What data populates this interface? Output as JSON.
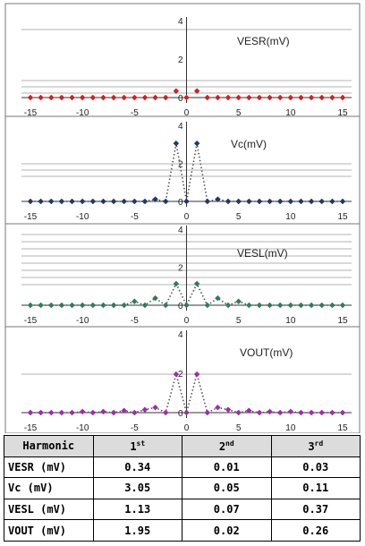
{
  "chart_data": [
    {
      "type": "scatter",
      "title": "VESR(mV)",
      "x": [
        -15,
        -14,
        -13,
        -12,
        -11,
        -10,
        -9,
        -8,
        -7,
        -6,
        -5,
        -4,
        -3,
        -2,
        -1,
        0,
        1,
        2,
        3,
        4,
        5,
        6,
        7,
        8,
        9,
        10,
        11,
        12,
        13,
        14,
        15
      ],
      "y": [
        0,
        0,
        0,
        0,
        0,
        0,
        0,
        0,
        0,
        0,
        0,
        0,
        0,
        0,
        0.34,
        0,
        0.34,
        0,
        0,
        0,
        0,
        0,
        0,
        0,
        0,
        0,
        0,
        0,
        0,
        0,
        0
      ],
      "xlim": [
        -15,
        15
      ],
      "ylim": [
        0,
        4
      ],
      "xticks": [
        -15,
        -10,
        -5,
        0,
        5,
        10,
        15
      ],
      "yticks": [
        0,
        2,
        4
      ],
      "color": "#d42020",
      "marker": "diamond",
      "line": "none"
    },
    {
      "type": "line",
      "title": "Vc(mV)",
      "x": [
        -15,
        -14,
        -13,
        -12,
        -11,
        -10,
        -9,
        -8,
        -7,
        -6,
        -5,
        -4,
        -3,
        -2,
        -1,
        0,
        1,
        2,
        3,
        4,
        5,
        6,
        7,
        8,
        9,
        10,
        11,
        12,
        13,
        14,
        15
      ],
      "y": [
        0,
        0,
        0,
        0,
        0,
        0,
        0,
        0,
        0,
        0,
        0,
        0,
        0.11,
        0,
        3.05,
        0,
        3.05,
        0,
        0.11,
        0,
        0,
        0,
        0,
        0,
        0,
        0,
        0,
        0,
        0,
        0,
        0
      ],
      "xlim": [
        -15,
        15
      ],
      "ylim": [
        0,
        4
      ],
      "xticks": [
        -15,
        -10,
        -5,
        0,
        5,
        10,
        15
      ],
      "yticks": [
        0,
        2,
        4
      ],
      "color": "#1f3a66",
      "marker": "diamond",
      "line": "dotted"
    },
    {
      "type": "line",
      "title": "VESL(mV)",
      "x": [
        -15,
        -14,
        -13,
        -12,
        -11,
        -10,
        -9,
        -8,
        -7,
        -6,
        -5,
        -4,
        -3,
        -2,
        -1,
        0,
        1,
        2,
        3,
        4,
        5,
        6,
        7,
        8,
        9,
        10,
        11,
        12,
        13,
        14,
        15
      ],
      "y": [
        0,
        0,
        0,
        0,
        0,
        0,
        0,
        0,
        0,
        0,
        0.2,
        0,
        0.37,
        0,
        1.13,
        0,
        1.13,
        0,
        0.37,
        0,
        0.2,
        0,
        0,
        0,
        0,
        0,
        0,
        0,
        0,
        0,
        0
      ],
      "xlim": [
        -15,
        15
      ],
      "ylim": [
        0,
        4
      ],
      "xticks": [
        -15,
        -10,
        -5,
        0,
        5,
        10,
        15
      ],
      "yticks": [
        0,
        2,
        4
      ],
      "color": "#2e7d5b",
      "marker": "diamond",
      "line": "dotted"
    },
    {
      "type": "line",
      "title": "VOUT(mV)",
      "x": [
        -15,
        -14,
        -13,
        -12,
        -11,
        -10,
        -9,
        -8,
        -7,
        -6,
        -5,
        -4,
        -3,
        -2,
        -1,
        0,
        1,
        2,
        3,
        4,
        5,
        6,
        7,
        8,
        9,
        10,
        11,
        12,
        13,
        14,
        15
      ],
      "y": [
        0,
        0,
        0,
        0,
        0,
        0.05,
        0,
        0.05,
        0,
        0.1,
        0,
        0.15,
        0.26,
        0,
        1.95,
        0,
        1.95,
        0,
        0.26,
        0.15,
        0,
        0.1,
        0,
        0.05,
        0,
        0.05,
        0,
        0,
        0,
        0,
        0
      ],
      "xlim": [
        -15,
        15
      ],
      "ylim": [
        0,
        4
      ],
      "xticks": [
        -15,
        -10,
        -5,
        0,
        5,
        10,
        15
      ],
      "yticks": [
        0,
        2,
        4
      ],
      "color": "#a02ab0",
      "marker": "diamond",
      "line": "dotted"
    }
  ],
  "table": {
    "header": {
      "label": "Harmonic",
      "h1": "1",
      "h1sup": "st",
      "h2": "2",
      "h2sup": "nd",
      "h3": "3",
      "h3sup": "rd"
    },
    "rows": [
      {
        "label": "VESR (mV)",
        "v1": "0.34",
        "v2": "0.01",
        "v3": "0.03"
      },
      {
        "label": "Vc (mV)",
        "v1": "3.05",
        "v2": "0.05",
        "v3": "0.11"
      },
      {
        "label": "VESL (mV)",
        "v1": "1.13",
        "v2": "0.07",
        "v3": "0.37"
      },
      {
        "label": "VOUT (mV)",
        "v1": "1.95",
        "v2": "0.02",
        "v3": "0.26"
      }
    ]
  }
}
